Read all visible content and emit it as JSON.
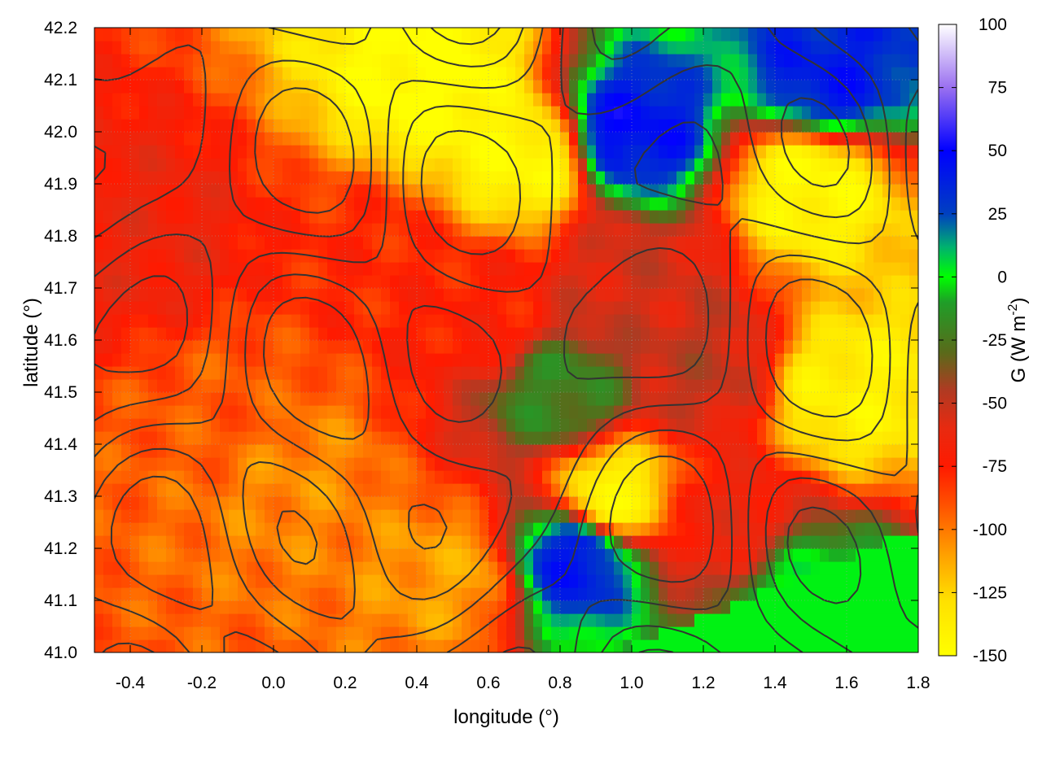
{
  "chart_data": {
    "type": "heatmap",
    "xlabel": "longitude (°)",
    "ylabel": "latitude (°)",
    "colorbar_label": "G (W m",
    "colorbar_label_sup": "-2",
    "colorbar_label_close": ")",
    "xlim": [
      -0.5,
      1.8
    ],
    "ylim": [
      41.0,
      42.2
    ],
    "zlim": [
      -150,
      100
    ],
    "x_ticks": [
      -0.4,
      -0.2,
      0.0,
      0.2,
      0.4,
      0.6,
      0.8,
      1.0,
      1.2,
      1.4,
      1.6,
      1.8
    ],
    "x_tick_labels": [
      "-0.4",
      "-0.2",
      "0.0",
      "0.2",
      "0.4",
      "0.6",
      "0.8",
      "1.0",
      "1.2",
      "1.4",
      "1.6",
      "1.8"
    ],
    "y_ticks": [
      41.0,
      41.1,
      41.2,
      41.3,
      41.4,
      41.5,
      41.6,
      41.7,
      41.8,
      41.9,
      42.0,
      42.1,
      42.2
    ],
    "y_tick_labels": [
      "41.0",
      "41.1",
      "41.2",
      "41.3",
      "41.4",
      "41.5",
      "41.6",
      "41.7",
      "41.8",
      "41.9",
      "42.0",
      "42.1",
      "42.2"
    ],
    "colorbar_ticks": [
      -150,
      -125,
      -100,
      -75,
      -50,
      -25,
      0,
      25,
      50,
      75,
      100
    ],
    "colorbar_tick_labels": [
      "-150",
      "-125",
      "-100",
      "-75",
      "-50",
      "-25",
      "0",
      "25",
      "50",
      "75",
      "100"
    ],
    "colormap": [
      {
        "value": -150,
        "color": "#ffff00"
      },
      {
        "value": -128,
        "color": "#ffe000"
      },
      {
        "value": -110,
        "color": "#ffa000"
      },
      {
        "value": -90,
        "color": "#ff5000"
      },
      {
        "value": -75,
        "color": "#ff1a00"
      },
      {
        "value": -60,
        "color": "#e82a10"
      },
      {
        "value": -45,
        "color": "#b03a22"
      },
      {
        "value": -30,
        "color": "#5a6a1a"
      },
      {
        "value": -10,
        "color": "#1f9e28"
      },
      {
        "value": 0,
        "color": "#00ff00"
      },
      {
        "value": 12,
        "color": "#00b070"
      },
      {
        "value": 25,
        "color": "#0040c0"
      },
      {
        "value": 50,
        "color": "#0000ff"
      },
      {
        "value": 75,
        "color": "#9a70f0"
      },
      {
        "value": 100,
        "color": "#ffffff"
      }
    ],
    "grid": true,
    "contours": true,
    "approximate_field": {
      "description_points": [
        {
          "lon": -0.35,
          "lat": 41.8,
          "G": -65
        },
        {
          "lon": -0.1,
          "lat": 41.45,
          "G": -92
        },
        {
          "lon": 0.05,
          "lat": 41.35,
          "G": -105
        },
        {
          "lon": 0.3,
          "lat": 41.75,
          "G": -78
        },
        {
          "lon": 0.6,
          "lat": 41.65,
          "G": -75
        },
        {
          "lon": 0.8,
          "lat": 41.5,
          "G": -20
        },
        {
          "lon": 1.0,
          "lat": 41.7,
          "G": -55
        },
        {
          "lon": 1.2,
          "lat": 41.55,
          "G": -50
        },
        {
          "lon": 0.45,
          "lat": 42.1,
          "G": -150
        },
        {
          "lon": 0.7,
          "lat": 41.95,
          "G": -145
        },
        {
          "lon": 1.5,
          "lat": 41.9,
          "G": -145
        },
        {
          "lon": 1.6,
          "lat": 41.5,
          "G": -140
        },
        {
          "lon": 0.95,
          "lat": 41.3,
          "G": -140
        },
        {
          "lon": 1.0,
          "lat": 42.0,
          "G": 45
        },
        {
          "lon": 1.55,
          "lat": 42.1,
          "G": 40
        },
        {
          "lon": 0.85,
          "lat": 41.18,
          "G": 40
        },
        {
          "lon": 1.5,
          "lat": 41.1,
          "G": 2
        },
        {
          "lon": 0.5,
          "lat": 41.15,
          "G": -110
        },
        {
          "lon": 1.25,
          "lat": 41.25,
          "G": -65
        }
      ]
    }
  }
}
